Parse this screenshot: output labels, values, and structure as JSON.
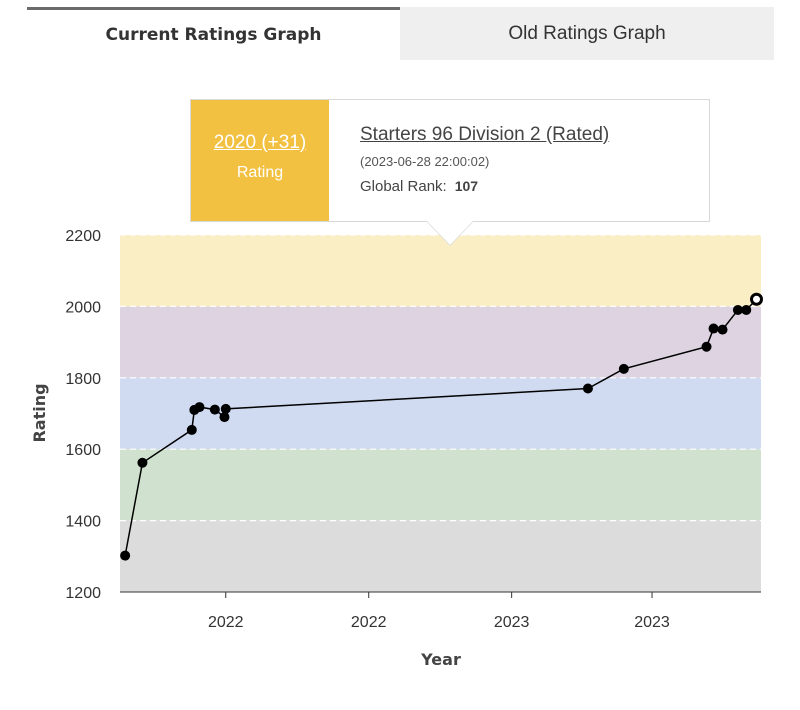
{
  "tabs": {
    "current": "Current Ratings Graph",
    "old": "Old Ratings Graph"
  },
  "tooltip": {
    "rating": "2020 (+31)",
    "rating_label": "Rating",
    "contest": "Starters 96 Division 2 (Rated)",
    "date": "(2023-06-28 22:00:02)",
    "rank_label": "Global Rank:",
    "rank_value": "107"
  },
  "colors": {
    "band_gray": "#dcdcdc",
    "band_green": "#d1e1cf",
    "band_blue": "#d0dbf1",
    "band_purple": "#ddd3e1",
    "band_yellow": "#faeec5",
    "line": "#000000",
    "tooltip_accent": "#f3c141"
  },
  "chart_data": {
    "type": "line",
    "title": "",
    "xlabel": "Year",
    "ylabel": "Rating",
    "ylim": [
      1200,
      2200
    ],
    "yticks": [
      "1200",
      "1400",
      "1600",
      "1800",
      "2000",
      "2200"
    ],
    "xticks": [
      {
        "t": 0.165,
        "label": "2022"
      },
      {
        "t": 0.388,
        "label": "2022"
      },
      {
        "t": 0.611,
        "label": "2023"
      },
      {
        "t": 0.83,
        "label": "2023"
      }
    ],
    "bands": [
      {
        "from": 1200,
        "to": 1400,
        "color": "#dcdcdc"
      },
      {
        "from": 1400,
        "to": 1600,
        "color": "#d1e1cf"
      },
      {
        "from": 1600,
        "to": 1800,
        "color": "#d0dbf1"
      },
      {
        "from": 1800,
        "to": 2000,
        "color": "#ddd3e1"
      },
      {
        "from": 2000,
        "to": 2200,
        "color": "#faeec5"
      }
    ],
    "points": [
      {
        "t": 0.008,
        "y": 1302
      },
      {
        "t": 0.035,
        "y": 1562
      },
      {
        "t": 0.112,
        "y": 1654
      },
      {
        "t": 0.116,
        "y": 1710
      },
      {
        "t": 0.124,
        "y": 1718
      },
      {
        "t": 0.148,
        "y": 1711
      },
      {
        "t": 0.163,
        "y": 1690
      },
      {
        "t": 0.165,
        "y": 1713
      },
      {
        "t": 0.73,
        "y": 1770
      },
      {
        "t": 0.786,
        "y": 1825
      },
      {
        "t": 0.915,
        "y": 1887
      },
      {
        "t": 0.926,
        "y": 1938
      },
      {
        "t": 0.94,
        "y": 1935
      },
      {
        "t": 0.964,
        "y": 1990
      },
      {
        "t": 0.977,
        "y": 1990
      },
      {
        "t": 0.993,
        "y": 2020
      }
    ]
  }
}
